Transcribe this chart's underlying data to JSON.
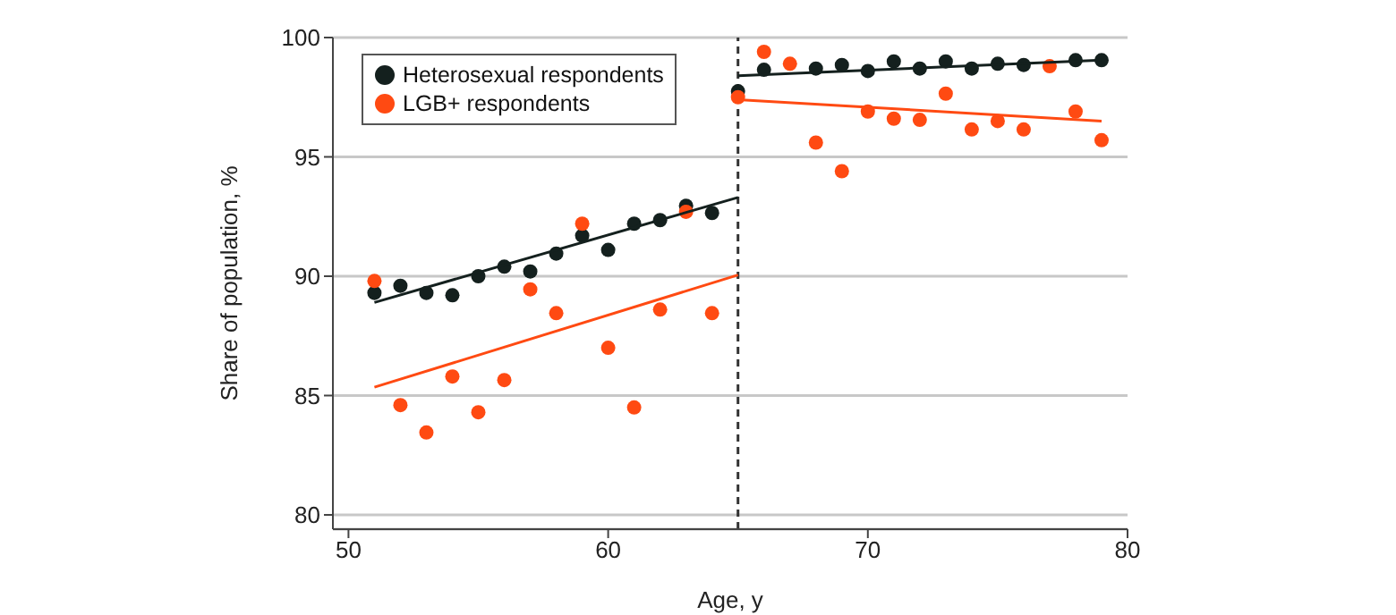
{
  "chart_data": {
    "type": "scatter",
    "xlabel": "Age, y",
    "ylabel": "Share of population, %",
    "xlim": [
      49.4,
      80
    ],
    "xticks": [
      50,
      60,
      70,
      80
    ],
    "ylim": [
      79.4,
      100
    ],
    "yticks": [
      80,
      85,
      90,
      95,
      100
    ],
    "grid": "y",
    "legend": "top left",
    "marker": "circle",
    "ref_lines": [
      {
        "axis": "x",
        "value": 65,
        "color": "#333333",
        "line_style": "dashed"
      }
    ],
    "series": [
      {
        "name": "Heterosexual respondents",
        "color": "#14201e",
        "x": [
          51,
          52,
          53,
          54,
          55,
          56,
          57,
          58,
          59,
          60,
          61,
          62,
          63,
          64,
          65,
          66,
          67,
          68,
          69,
          70,
          71,
          72,
          73,
          74,
          75,
          76,
          77,
          78,
          79
        ],
        "values": [
          89.3,
          89.6,
          89.3,
          89.2,
          90.0,
          90.4,
          90.2,
          90.95,
          91.7,
          91.1,
          92.2,
          92.35,
          92.95,
          92.65,
          97.75,
          98.65,
          null,
          98.7,
          98.85,
          98.6,
          99.0,
          98.7,
          99.0,
          98.7,
          98.9,
          98.85,
          null,
          99.05,
          99.05
        ]
      },
      {
        "name": "LGB+ respondents",
        "color": "#ff4a12",
        "x": [
          51,
          52,
          53,
          54,
          55,
          56,
          57,
          58,
          59,
          60,
          61,
          62,
          63,
          64,
          65,
          66,
          67,
          68,
          69,
          70,
          71,
          72,
          73,
          74,
          75,
          76,
          77,
          78,
          79
        ],
        "values": [
          89.8,
          84.6,
          83.45,
          85.8,
          84.3,
          85.65,
          89.45,
          88.45,
          92.2,
          87.0,
          84.5,
          88.6,
          92.7,
          88.45,
          97.5,
          99.4,
          98.9,
          95.6,
          94.4,
          96.9,
          96.6,
          96.55,
          97.65,
          96.15,
          96.5,
          96.15,
          98.8,
          96.9,
          95.7
        ]
      },
      {
        "type": "line",
        "color": "#14201e",
        "marker": "none",
        "x": [
          51,
          65
        ],
        "values": [
          88.9,
          93.3
        ]
      },
      {
        "type": "line",
        "color": "#ff4a12",
        "marker": "none",
        "x": [
          51,
          65
        ],
        "values": [
          85.35,
          90.05
        ]
      },
      {
        "type": "line",
        "color": "#14201e",
        "marker": "none",
        "x": [
          65,
          79
        ],
        "values": [
          98.4,
          99.05
        ]
      },
      {
        "type": "line",
        "color": "#ff4a12",
        "marker": "none",
        "x": [
          65,
          79
        ],
        "values": [
          97.4,
          96.5
        ]
      }
    ]
  }
}
